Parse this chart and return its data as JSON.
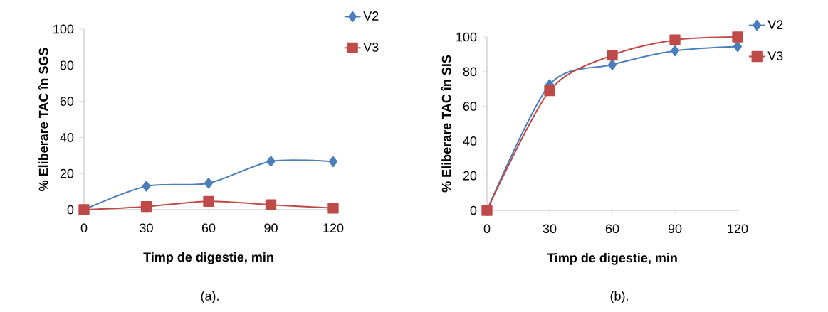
{
  "chart_data": [
    {
      "type": "line",
      "xlabel": "Timp de digestie, min",
      "ylabel": "% Eliberare TAC în SGS",
      "x": [
        0,
        30,
        60,
        90,
        120
      ],
      "xlim": [
        0,
        120
      ],
      "xticks": [
        0,
        30,
        60,
        90,
        120
      ],
      "ylim": [
        0,
        100
      ],
      "yticks": [
        0,
        20,
        40,
        60,
        80,
        100
      ],
      "legend": "top right",
      "line_style": "solid",
      "annotations": [
        "(a)."
      ],
      "series": [
        {
          "name": "V2",
          "color": "#4a7ebb",
          "marker": "diamond",
          "values": [
            0,
            13,
            14.7,
            26.8,
            26.6
          ]
        },
        {
          "name": "V3",
          "color": "#be4b48",
          "marker": "square",
          "values": [
            0,
            1.7,
            4.6,
            2.7,
            0.9
          ]
        }
      ]
    },
    {
      "type": "line",
      "xlabel": "Timp de digestie, min",
      "ylabel": "% Eliberare TAC în SIS",
      "x": [
        0,
        30,
        60,
        90,
        120
      ],
      "xlim": [
        0,
        120
      ],
      "xticks": [
        0,
        30,
        60,
        90,
        120
      ],
      "ylim": [
        0,
        100
      ],
      "yticks": [
        0,
        20,
        40,
        60,
        80,
        100
      ],
      "legend": "top right",
      "line_style": "solid",
      "annotations": [
        "(b)."
      ],
      "series": [
        {
          "name": "V2",
          "color": "#4a7ebb",
          "marker": "diamond",
          "values": [
            0,
            72.5,
            84,
            92,
            94.5
          ]
        },
        {
          "name": "V3",
          "color": "#be4b48",
          "marker": "square",
          "values": [
            0,
            69,
            89.5,
            98.3,
            100
          ]
        }
      ]
    }
  ]
}
